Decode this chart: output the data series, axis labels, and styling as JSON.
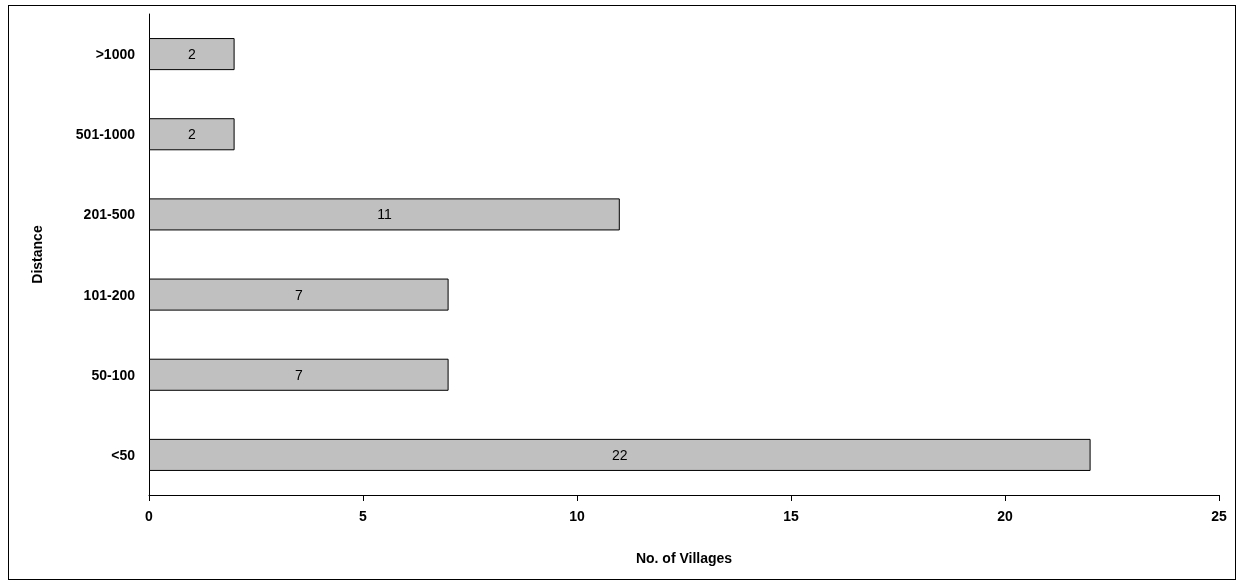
{
  "chart_data": {
    "type": "bar",
    "orientation": "horizontal",
    "xlabel": "No. of Villages",
    "ylabel": "Distance",
    "categories": [
      ">1000",
      "501-1000",
      "201-500",
      "101-200",
      "50-100",
      "<50"
    ],
    "values": [
      2,
      2,
      11,
      7,
      7,
      22
    ],
    "color": "#c0c0c0",
    "xlim": [
      0,
      25
    ],
    "xticks": [
      0,
      5,
      10,
      15,
      20,
      25
    ],
    "grid": false,
    "data_labels": true
  }
}
